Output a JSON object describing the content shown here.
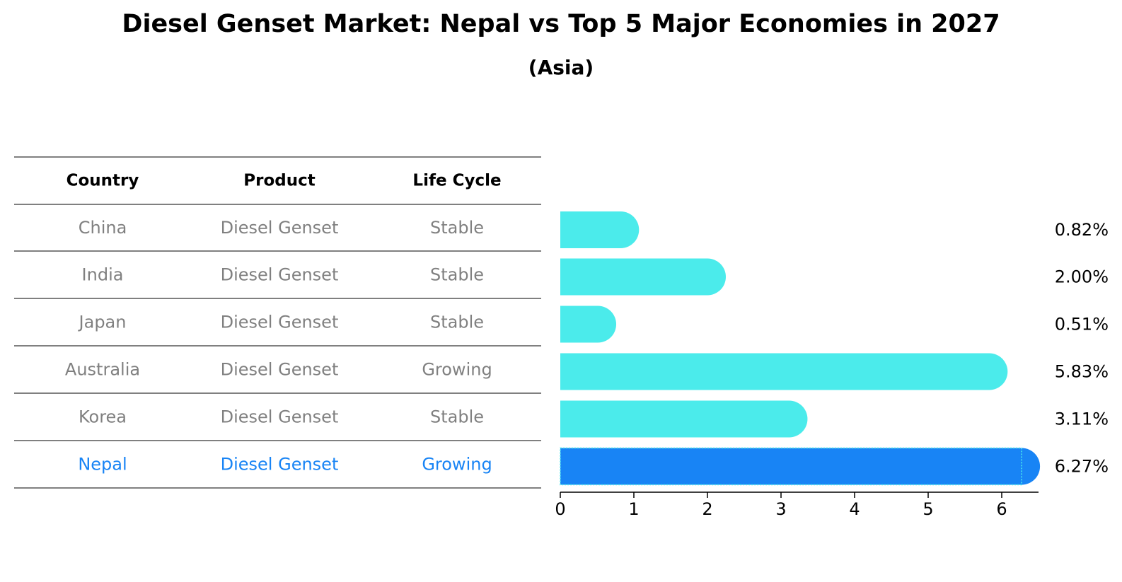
{
  "chart_data": {
    "type": "bar",
    "orientation": "horizontal",
    "title": "Diesel Genset Market: Nepal vs Top 5 Major Economies in 2027",
    "subtitle": "(Asia)",
    "table": {
      "columns": [
        "Country",
        "Product",
        "Life Cycle"
      ],
      "rows": [
        [
          "China",
          "Diesel Genset",
          "Stable"
        ],
        [
          "India",
          "Diesel Genset",
          "Stable"
        ],
        [
          "Japan",
          "Diesel Genset",
          "Stable"
        ],
        [
          "Australia",
          "Diesel Genset",
          "Growing"
        ],
        [
          "Korea",
          "Diesel Genset",
          "Stable"
        ],
        [
          "Nepal",
          "Diesel Genset",
          "Growing"
        ]
      ]
    },
    "categories": [
      "China",
      "India",
      "Japan",
      "Australia",
      "Korea",
      "Nepal"
    ],
    "values": [
      0.82,
      2.0,
      0.51,
      5.83,
      3.11,
      6.27
    ],
    "value_labels": [
      "0.82%",
      "2.00%",
      "0.51%",
      "5.83%",
      "3.11%",
      "6.27%"
    ],
    "highlight": "Nepal",
    "xlim": [
      0,
      6.5
    ],
    "xticks": [
      0,
      1,
      2,
      3,
      4,
      5,
      6
    ],
    "xlabel": "",
    "ylabel": "",
    "grid": false,
    "colors": {
      "bar": "#4BEBEB",
      "highlight_bar": "#1884F5",
      "table_text": "#808080",
      "highlight_text": "#1884F5"
    }
  }
}
